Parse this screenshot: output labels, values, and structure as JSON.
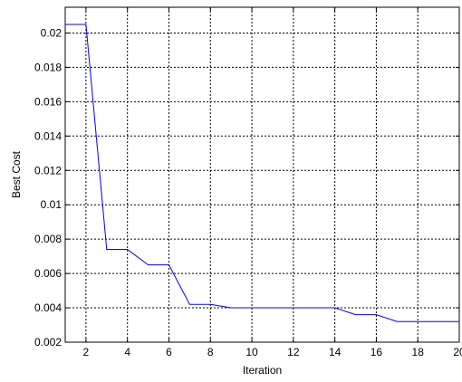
{
  "chart_data": {
    "type": "line",
    "title": "",
    "xlabel": "Iteration",
    "ylabel": "Best Cost",
    "xlim": [
      1,
      20
    ],
    "ylim": [
      0.002,
      0.0215
    ],
    "xticks": [
      2,
      4,
      6,
      8,
      10,
      12,
      14,
      16,
      18,
      20
    ],
    "xtick_labels": [
      "2",
      "4",
      "6",
      "8",
      "10",
      "12",
      "14",
      "16",
      "18",
      "20"
    ],
    "yticks": [
      0.002,
      0.004,
      0.006,
      0.008,
      0.01,
      0.012,
      0.014,
      0.016,
      0.018,
      0.02
    ],
    "ytick_labels": [
      "0.002",
      "0.004",
      "0.006",
      "0.008",
      "0.01",
      "0.012",
      "0.014",
      "0.016",
      "0.018",
      "0.02"
    ],
    "grid": true,
    "grid_style": "dotted",
    "series": [
      {
        "color": "#0000ff",
        "x": [
          1,
          2,
          3,
          4,
          5,
          6,
          7,
          8,
          9,
          10,
          11,
          12,
          13,
          14,
          15,
          16,
          17,
          18,
          19,
          20
        ],
        "values": [
          0.0205,
          0.0205,
          0.0074,
          0.0074,
          0.0065,
          0.0065,
          0.0042,
          0.0042,
          0.004,
          0.004,
          0.004,
          0.004,
          0.004,
          0.004,
          0.0036,
          0.0036,
          0.0032,
          0.0032,
          0.0032,
          0.0032
        ]
      }
    ]
  }
}
